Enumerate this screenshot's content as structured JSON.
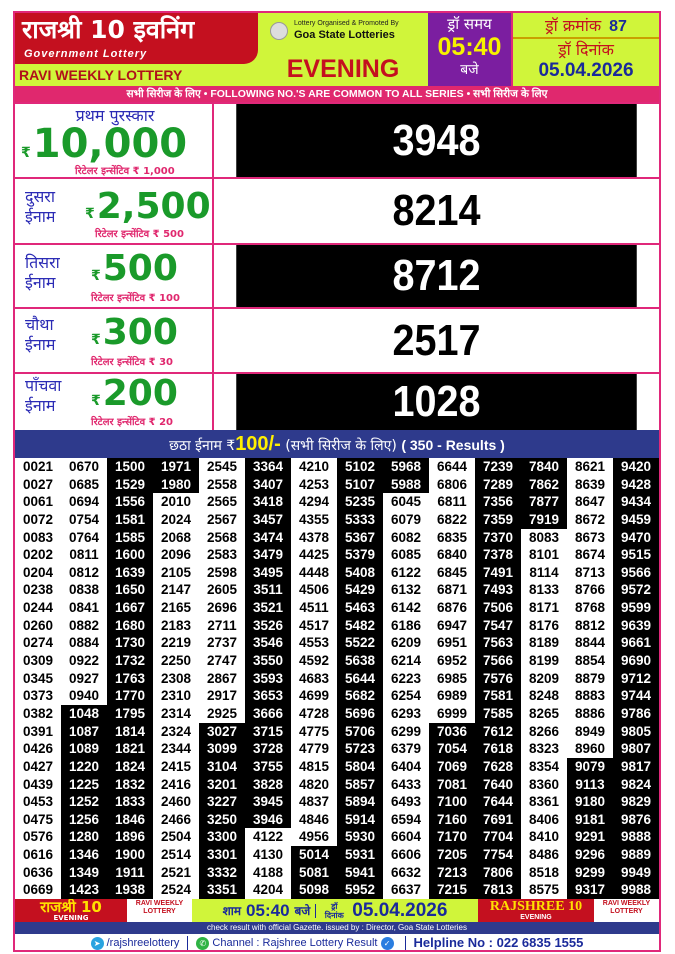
{
  "header": {
    "title_hindi": "राजश्री 10 इवनिंग",
    "subtitle": "Government Lottery",
    "weekly": "RAVI WEEKLY LOTTERY",
    "organised_by": "Lottery Organised & Promoted By",
    "organiser": "Goa State Lotteries",
    "session": "EVENING",
    "draw_time_label": "ड्रॉ समय",
    "draw_time": "05:40",
    "draw_time_suffix": "बजे",
    "draw_no_label": "ड्रॉ क्रमांक",
    "draw_no": "87",
    "draw_date_label": "ड्रॉ दिनांक",
    "draw_date": "05.04.2026"
  },
  "band": "सभी सिरीज के लिए  •  FOLLOWING NO.'S ARE COMMON TO ALL SERIES  • सभी सिरीज के लिए",
  "prizes": [
    {
      "label": "प्रथम पुरस्कार",
      "amount": "10,000",
      "retailer": "रिटेलर इन्सेंटिव ₹ 1,000",
      "number": "3948"
    },
    {
      "label": "दुसरा ईनाम",
      "amount": "2,500",
      "retailer": "रिटेलर इन्सेंटिव ₹ 500",
      "number": "8214"
    },
    {
      "label": "तिसरा ईनाम",
      "amount": "500",
      "retailer": "रिटेलर इन्सेंटिव ₹ 100",
      "number": "8712"
    },
    {
      "label": "चौथा ईनाम",
      "amount": "300",
      "retailer": "रिटेलर इन्सेंटिव ₹ 30",
      "number": "2517"
    },
    {
      "label": "पाँचवा ईनाम",
      "amount": "200",
      "retailer": "रिटेलर इन्सेंटिव ₹ 20",
      "number": "1028"
    }
  ],
  "rupee": "₹",
  "sixth": {
    "label": "छठा ईनाम ₹",
    "amount": "100/-",
    "series": " (सभी सिरीज के लिए) ",
    "count": "( 350 - Results )",
    "numbers": [
      "0021",
      "0027",
      "0061",
      "0072",
      "0083",
      "0202",
      "0204",
      "0238",
      "0244",
      "0260",
      "0274",
      "0309",
      "0345",
      "0373",
      "0382",
      "0391",
      "0426",
      "0427",
      "0439",
      "0453",
      "0475",
      "0576",
      "0616",
      "0636",
      "0669",
      "0670",
      "0685",
      "0694",
      "0754",
      "0764",
      "0811",
      "0812",
      "0838",
      "0841",
      "0882",
      "0884",
      "0922",
      "0927",
      "0940",
      "1048",
      "1087",
      "1089",
      "1220",
      "1225",
      "1252",
      "1256",
      "1280",
      "1346",
      "1349",
      "1423",
      "1500",
      "1529",
      "1556",
      "1581",
      "1585",
      "1600",
      "1639",
      "1650",
      "1667",
      "1680",
      "1730",
      "1732",
      "1763",
      "1770",
      "1795",
      "1814",
      "1821",
      "1824",
      "1832",
      "1833",
      "1846",
      "1896",
      "1900",
      "1911",
      "1938",
      "1971",
      "1980",
      "2010",
      "2024",
      "2068",
      "2096",
      "2105",
      "2147",
      "2165",
      "2183",
      "2219",
      "2250",
      "2308",
      "2310",
      "2314",
      "2324",
      "2344",
      "2415",
      "2416",
      "2460",
      "2466",
      "2504",
      "2514",
      "2521",
      "2524",
      "2545",
      "2558",
      "2565",
      "2567",
      "2568",
      "2583",
      "2598",
      "2605",
      "2696",
      "2711",
      "2737",
      "2747",
      "2867",
      "2917",
      "2925",
      "3027",
      "3099",
      "3104",
      "3201",
      "3227",
      "3250",
      "3300",
      "3301",
      "3332",
      "3351",
      "3364",
      "3407",
      "3418",
      "3457",
      "3474",
      "3479",
      "3495",
      "3511",
      "3521",
      "3526",
      "3546",
      "3550",
      "3593",
      "3653",
      "3666",
      "3715",
      "3728",
      "3755",
      "3828",
      "3945",
      "3946",
      "4122",
      "4130",
      "4188",
      "4204",
      "4210",
      "4253",
      "4294",
      "4355",
      "4378",
      "4425",
      "4448",
      "4506",
      "4511",
      "4517",
      "4553",
      "4592",
      "4683",
      "4699",
      "4728",
      "4775",
      "4779",
      "4815",
      "4820",
      "4837",
      "4846",
      "4956",
      "5014",
      "5081",
      "5098",
      "5102",
      "5107",
      "5235",
      "5333",
      "5367",
      "5379",
      "5408",
      "5429",
      "5463",
      "5482",
      "5522",
      "5638",
      "5644",
      "5682",
      "5696",
      "5706",
      "5723",
      "5804",
      "5857",
      "5894",
      "5914",
      "5930",
      "5931",
      "5941",
      "5952",
      "5968",
      "5988",
      "6045",
      "6079",
      "6082",
      "6085",
      "6122",
      "6132",
      "6142",
      "6186",
      "6209",
      "6214",
      "6223",
      "6254",
      "6293",
      "6299",
      "6379",
      "6404",
      "6433",
      "6493",
      "6594",
      "6604",
      "6606",
      "6632",
      "6637",
      "6644",
      "6806",
      "6811",
      "6822",
      "6835",
      "6840",
      "6845",
      "6871",
      "6876",
      "6947",
      "6951",
      "6952",
      "6985",
      "6989",
      "6999",
      "7036",
      "7054",
      "7069",
      "7081",
      "7100",
      "7160",
      "7170",
      "7205",
      "7213",
      "7215",
      "7239",
      "7289",
      "7356",
      "7359",
      "7370",
      "7378",
      "7491",
      "7493",
      "7506",
      "7547",
      "7563",
      "7566",
      "7576",
      "7581",
      "7585",
      "7612",
      "7618",
      "7628",
      "7640",
      "7644",
      "7691",
      "7704",
      "7754",
      "7806",
      "7813",
      "7840",
      "7862",
      "7877",
      "7919",
      "8083",
      "8101",
      "8114",
      "8133",
      "8171",
      "8176",
      "8189",
      "8199",
      "8209",
      "8248",
      "8265",
      "8266",
      "8323",
      "8354",
      "8360",
      "8361",
      "8406",
      "8410",
      "8486",
      "8518",
      "8575",
      "8621",
      "8639",
      "8647",
      "8672",
      "8673",
      "8674",
      "8713",
      "8766",
      "8768",
      "8812",
      "8844",
      "8854",
      "8879",
      "8883",
      "8886",
      "8949",
      "8960",
      "9079",
      "9113",
      "9180",
      "9181",
      "9291",
      "9296",
      "9299",
      "9317",
      "9420",
      "9428",
      "9434",
      "9459",
      "9470",
      "9515",
      "9566",
      "9572",
      "9599",
      "9639",
      "9661",
      "9690",
      "9712",
      "9744",
      "9786",
      "9805",
      "9807",
      "9817",
      "9824",
      "9829",
      "9876",
      "9888",
      "9889",
      "9949",
      "9988"
    ]
  },
  "footer": {
    "brand_hindi": "राजश्री 10",
    "evening": "EVENING",
    "ravi": "RAVI WEEKLY LOTTERY",
    "time_prefix": "शाम",
    "time": "05:40",
    "time_suffix": "बजे",
    "date_label": "ड्रॉ दिनांक",
    "date": "05.04.2026",
    "brand_en": "RAJSHREE 10",
    "gazette": "check result with official Gazette. issued by : Director, Goa State Lotteries",
    "telegram": "/rajshreelottery",
    "whatsapp": "Channel : Rajshree Lottery Result",
    "helpline": "Helpline No : 022 6835 1555"
  },
  "colors": {
    "red": "#c4101f",
    "lime": "#d0f53a",
    "purple": "#7b1ea0",
    "pink": "#e0286e",
    "navy": "#2e3a8c",
    "green": "#1a9a2a",
    "blue": "#2b2bb5"
  },
  "icons": [
    "goa-emblem-icon",
    "telegram-icon",
    "whatsapp-icon",
    "verified-icon"
  ]
}
